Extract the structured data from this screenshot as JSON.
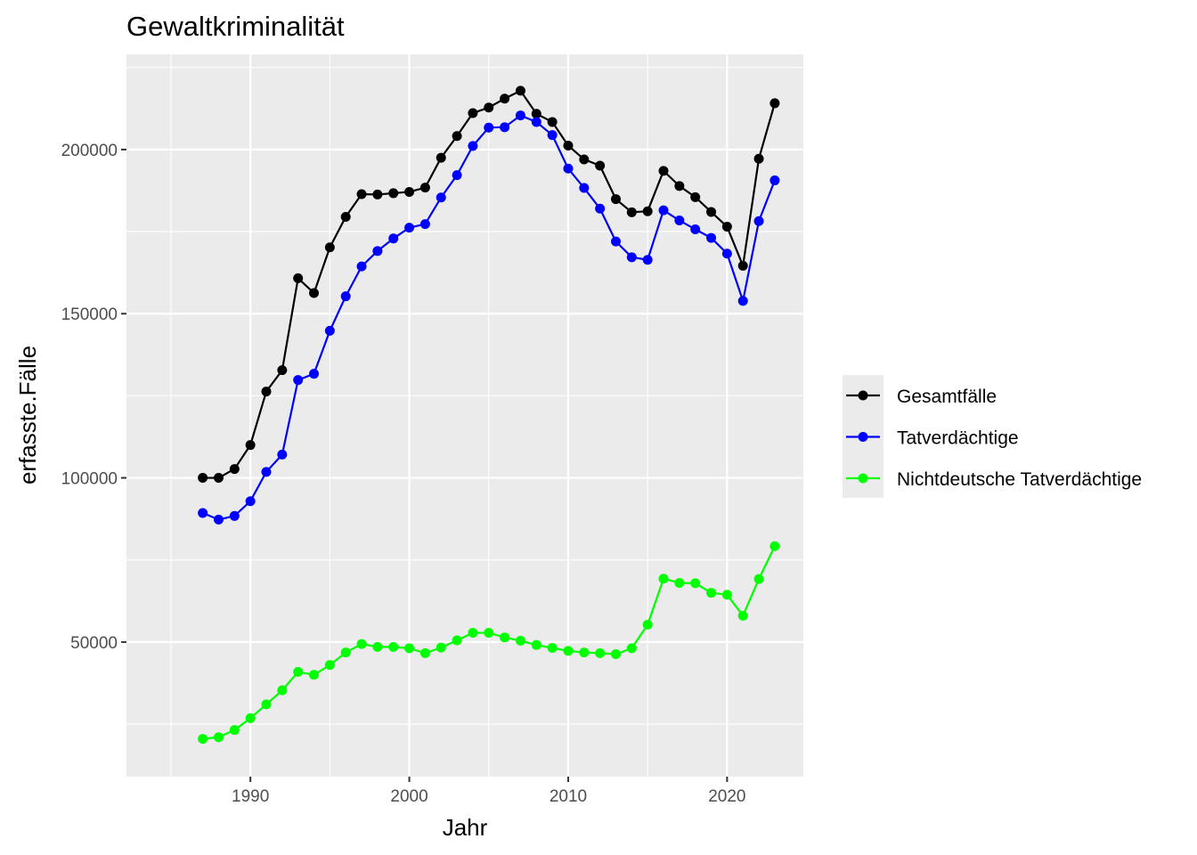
{
  "chart_data": {
    "type": "line",
    "title": "Gewaltkriminalität",
    "xlabel": "Jahr",
    "ylabel": "erfasste.Fälle",
    "x": [
      1987,
      1988,
      1989,
      1990,
      1991,
      1992,
      1993,
      1994,
      1995,
      1996,
      1997,
      1998,
      1999,
      2000,
      2001,
      2002,
      2003,
      2004,
      2005,
      2006,
      2007,
      2008,
      2009,
      2010,
      2011,
      2012,
      2013,
      2014,
      2015,
      2016,
      2017,
      2018,
      2019,
      2020,
      2021,
      2022,
      2023
    ],
    "xlim": [
      1982.2,
      2024.8
    ],
    "ylim": [
      9000,
      229000
    ],
    "x_ticks": [
      1990,
      2000,
      2010,
      2020
    ],
    "y_ticks": [
      50000,
      100000,
      150000,
      200000
    ],
    "x_tick_labels": [
      "1990",
      "2000",
      "2010",
      "2020"
    ],
    "y_tick_labels": [
      "50000",
      "100000",
      "150000",
      "200000"
    ],
    "grid": true,
    "legend_position": "right",
    "series": [
      {
        "name": "Gesamtfälle",
        "color": "#000000",
        "values": [
          100000,
          100000,
          102700,
          110000,
          126300,
          132800,
          160800,
          156300,
          170200,
          179500,
          186400,
          186300,
          186700,
          187100,
          188400,
          197500,
          204100,
          211100,
          212800,
          215500,
          217900,
          210900,
          208400,
          201200,
          197000,
          195100,
          184900,
          180900,
          181200,
          193500,
          188900,
          185500,
          181000,
          176500,
          164600,
          197200,
          214100
        ]
      },
      {
        "name": "Tatverdächtige",
        "color": "#0000ff",
        "values": [
          89300,
          87300,
          88400,
          92900,
          101800,
          107100,
          129800,
          131700,
          144800,
          155300,
          164400,
          169100,
          172900,
          176200,
          177300,
          185400,
          192200,
          201100,
          206700,
          206800,
          210400,
          208400,
          204400,
          194200,
          188300,
          182000,
          172000,
          167200,
          166400,
          181500,
          178400,
          175700,
          173100,
          168300,
          153900,
          178200,
          190600
        ]
      },
      {
        "name": "Nichtdeutsche Tatverdächtige",
        "color": "#00ff00",
        "values": [
          20500,
          21000,
          23200,
          26800,
          31000,
          35300,
          40900,
          40000,
          43000,
          46800,
          49400,
          48500,
          48500,
          48100,
          46600,
          48300,
          50500,
          52800,
          52800,
          51400,
          50400,
          49100,
          48200,
          47300,
          46800,
          46600,
          46300,
          48100,
          55300,
          69300,
          68000,
          67900,
          65000,
          64400,
          58000,
          69200,
          79200
        ]
      }
    ]
  }
}
